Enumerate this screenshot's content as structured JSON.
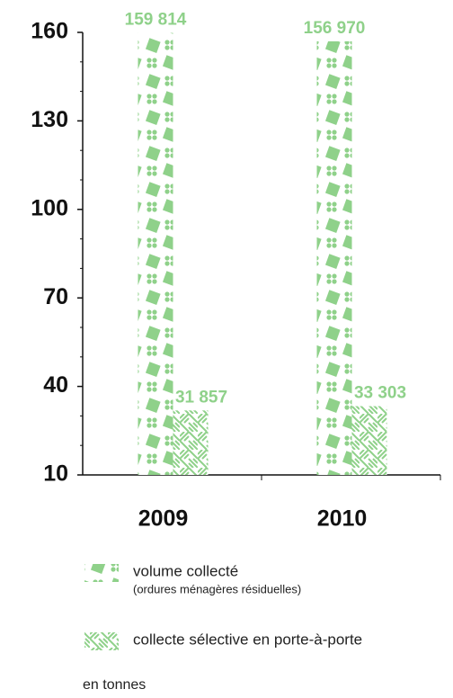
{
  "chart_data": {
    "type": "bar",
    "categories": [
      "2009",
      "2010"
    ],
    "series": [
      {
        "name": "volume collecté",
        "note": "(ordures ménagères résiduelles)",
        "color": "#8fd18a",
        "pattern": "checker",
        "values": [
          159.814,
          156.97
        ],
        "value_labels": [
          "159 814",
          "156 970"
        ]
      },
      {
        "name": "collecte sélective en porte-à-porte",
        "color": "#8fd18a",
        "pattern": "hatch",
        "values": [
          31.857,
          33.303
        ],
        "value_labels": [
          "31 857",
          "33 303"
        ]
      }
    ],
    "ylim": [
      10,
      160
    ],
    "yticks": [
      10,
      40,
      70,
      100,
      130,
      160
    ],
    "minor_yticks": [
      20,
      30,
      50,
      60,
      80,
      90,
      110,
      120,
      140,
      150
    ],
    "unit_note": "en tonnes"
  }
}
